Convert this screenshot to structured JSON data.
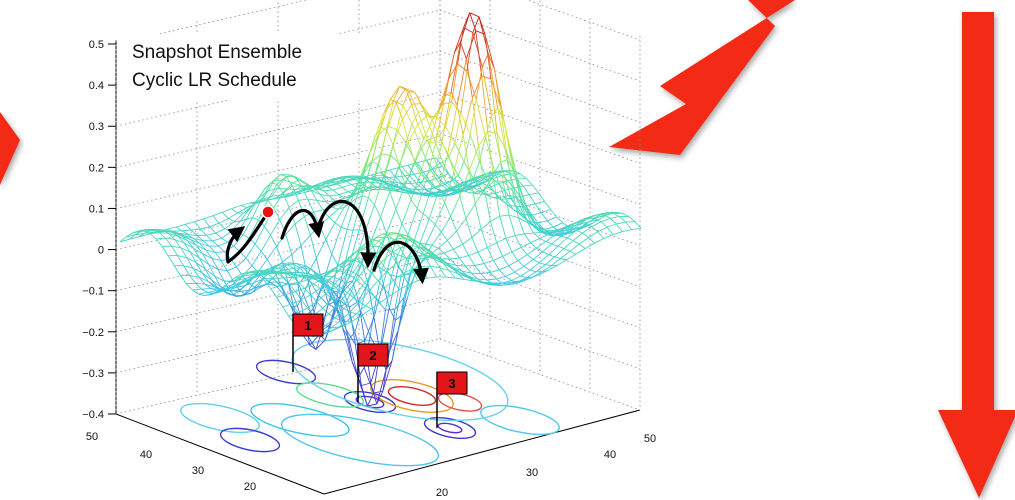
{
  "chart_data": {
    "type": "surface",
    "title_lines": [
      "Snapshot Ensemble",
      "Cyclic LR Schedule"
    ],
    "z_ticks": [
      "0.5",
      "0.4",
      "0.3",
      "0.2",
      "0.1",
      "0",
      "−0.1",
      "−0.2",
      "−0.3",
      "−0.4"
    ],
    "z_range": [
      -0.4,
      0.5
    ],
    "x_ticks": [
      "50",
      "40",
      "30",
      "20"
    ],
    "y_ticks": [
      "20",
      "30",
      "40",
      "50"
    ],
    "grid": true,
    "flags": [
      "1",
      "2",
      "3"
    ],
    "colors": {
      "arrows": "#f22a17",
      "flag": "#e3151a",
      "marker": "#ee1111",
      "trajectory": "#000000"
    }
  }
}
